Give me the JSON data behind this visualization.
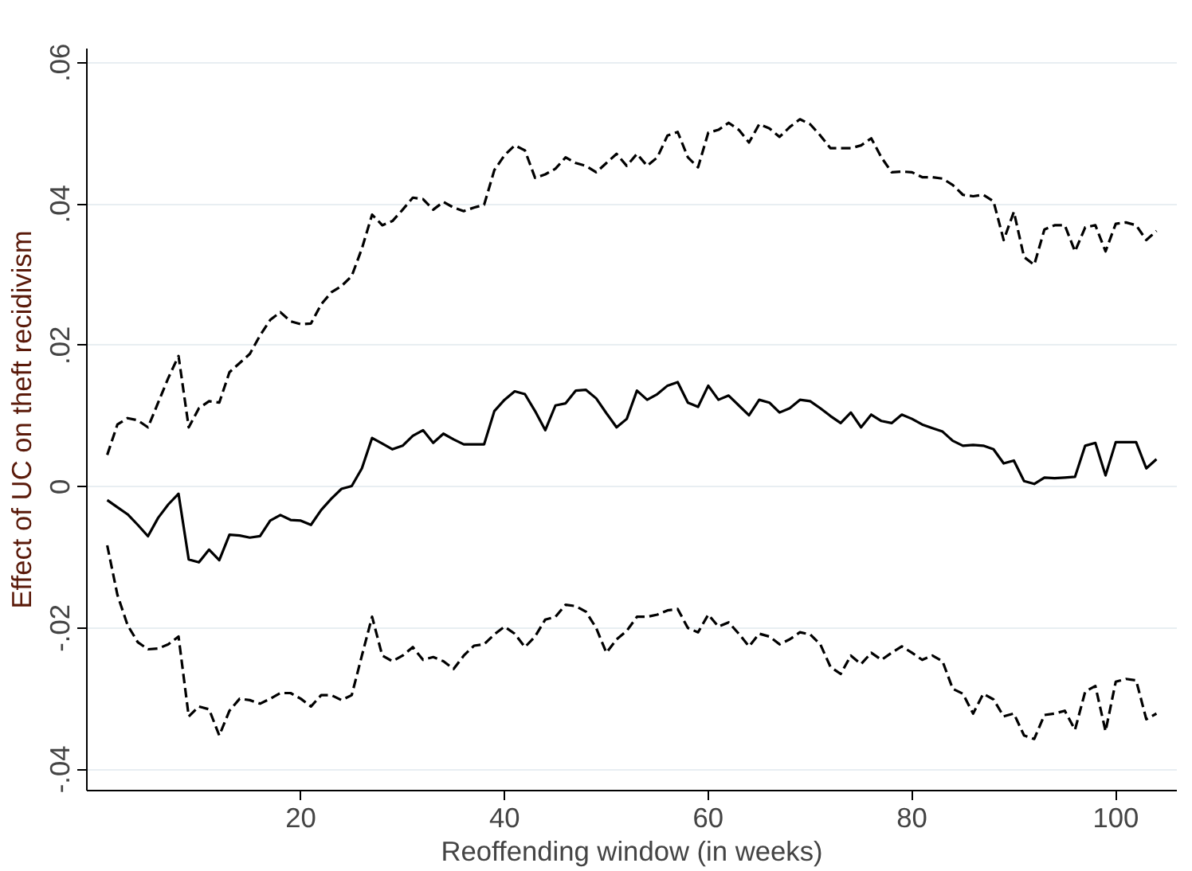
{
  "chart_data": {
    "type": "line",
    "xlabel": "Reoffending window (in weeks)",
    "ylabel": "Effect of UC on theft recidivism",
    "x": [
      1,
      2,
      3,
      4,
      5,
      6,
      7,
      8,
      9,
      10,
      11,
      12,
      13,
      14,
      15,
      16,
      17,
      18,
      19,
      20,
      21,
      22,
      23,
      24,
      25,
      26,
      27,
      28,
      29,
      30,
      31,
      32,
      33,
      34,
      35,
      36,
      37,
      38,
      39,
      40,
      41,
      42,
      43,
      44,
      45,
      46,
      47,
      48,
      49,
      50,
      51,
      52,
      53,
      54,
      55,
      56,
      57,
      58,
      59,
      60,
      61,
      62,
      63,
      64,
      65,
      66,
      67,
      68,
      69,
      70,
      71,
      72,
      73,
      74,
      75,
      76,
      77,
      78,
      79,
      80,
      81,
      82,
      83,
      84,
      85,
      86,
      87,
      88,
      89,
      90,
      91,
      92,
      93,
      94,
      95,
      96,
      97,
      98,
      99,
      100,
      101,
      102,
      103,
      104
    ],
    "xlim": [
      -1,
      106
    ],
    "xticks": [
      20,
      40,
      60,
      80,
      100
    ],
    "ylim": [
      -0.043,
      0.062
    ],
    "yticks": [
      {
        "value": -0.04,
        "label": "-.04"
      },
      {
        "value": -0.02,
        "label": "-.02"
      },
      {
        "value": 0,
        "label": "0"
      },
      {
        "value": 0.02,
        "label": ".02"
      },
      {
        "value": 0.04,
        "label": ".04"
      },
      {
        "value": 0.06,
        "label": ".06"
      }
    ],
    "grid": "y",
    "series": [
      {
        "color": "#000000",
        "line_style": "dashed",
        "values": [
          0.0045,
          0.0088,
          0.0097,
          0.0094,
          0.0084,
          0.0119,
          0.0154,
          0.0185,
          0.0084,
          0.0111,
          0.0121,
          0.0119,
          0.0162,
          0.0175,
          0.0188,
          0.0214,
          0.0236,
          0.0247,
          0.0234,
          0.023,
          0.0231,
          0.0258,
          0.0275,
          0.0284,
          0.0298,
          0.0337,
          0.0385,
          0.037,
          0.0376,
          0.0392,
          0.0409,
          0.0407,
          0.0392,
          0.0403,
          0.0395,
          0.039,
          0.0395,
          0.0399,
          0.0448,
          0.0469,
          0.0483,
          0.0476,
          0.0437,
          0.0442,
          0.045,
          0.0466,
          0.0458,
          0.0454,
          0.0445,
          0.0458,
          0.0471,
          0.0454,
          0.0471,
          0.0454,
          0.0466,
          0.0497,
          0.0502,
          0.0466,
          0.0452,
          0.0501,
          0.0505,
          0.0515,
          0.0505,
          0.0487,
          0.0513,
          0.0507,
          0.0495,
          0.0509,
          0.052,
          0.0513,
          0.0497,
          0.0479,
          0.0479,
          0.0479,
          0.0483,
          0.0493,
          0.0466,
          0.0445,
          0.0446,
          0.0445,
          0.0438,
          0.0438,
          0.0436,
          0.0427,
          0.0413,
          0.0411,
          0.0413,
          0.0404,
          0.0349,
          0.0389,
          0.0325,
          0.0314,
          0.0364,
          0.037,
          0.037,
          0.0333,
          0.0367,
          0.037,
          0.0333,
          0.0372,
          0.0374,
          0.037,
          0.0349,
          0.0362
        ]
      },
      {
        "color": "#000000",
        "line_style": "solid",
        "values": [
          -0.0019,
          -0.0029,
          -0.0039,
          -0.0054,
          -0.007,
          -0.0044,
          -0.0025,
          -0.001,
          -0.0103,
          -0.0107,
          -0.0089,
          -0.0104,
          -0.0068,
          -0.0069,
          -0.0072,
          -0.007,
          -0.0048,
          -0.004,
          -0.0047,
          -0.0048,
          -0.0054,
          -0.0033,
          -0.0017,
          -0.0003,
          0.0001,
          0.0026,
          0.0069,
          0.0061,
          0.0053,
          0.0058,
          0.0072,
          0.008,
          0.0062,
          0.0075,
          0.0067,
          0.006,
          0.006,
          0.006,
          0.0107,
          0.0123,
          0.0135,
          0.0131,
          0.0107,
          0.008,
          0.0115,
          0.0118,
          0.0136,
          0.0137,
          0.0125,
          0.0104,
          0.0084,
          0.0096,
          0.0136,
          0.0123,
          0.0131,
          0.0143,
          0.0148,
          0.0119,
          0.0113,
          0.0143,
          0.0123,
          0.0129,
          0.0115,
          0.0101,
          0.0123,
          0.0119,
          0.0105,
          0.0111,
          0.0123,
          0.0121,
          0.0111,
          0.01,
          0.009,
          0.0105,
          0.0084,
          0.0102,
          0.0093,
          0.009,
          0.0102,
          0.0096,
          0.0088,
          0.0083,
          0.0078,
          0.0065,
          0.0058,
          0.0059,
          0.0058,
          0.0053,
          0.0033,
          0.0037,
          0.0008,
          0.0004,
          0.0013,
          0.0012,
          0.0013,
          0.0014,
          0.0058,
          0.0062,
          0.0016,
          0.0063,
          0.0063,
          0.0063,
          0.0026,
          0.0039
        ]
      },
      {
        "color": "#000000",
        "line_style": "dashed",
        "values": [
          -0.0083,
          -0.0153,
          -0.0196,
          -0.022,
          -0.023,
          -0.0229,
          -0.0223,
          -0.0212,
          -0.0325,
          -0.0311,
          -0.0315,
          -0.0352,
          -0.0317,
          -0.03,
          -0.0302,
          -0.0307,
          -0.03,
          -0.0292,
          -0.0292,
          -0.03,
          -0.0311,
          -0.0295,
          -0.0295,
          -0.0302,
          -0.0295,
          -0.0239,
          -0.0184,
          -0.0239,
          -0.0247,
          -0.0239,
          -0.0227,
          -0.0245,
          -0.0241,
          -0.0247,
          -0.0258,
          -0.0239,
          -0.0225,
          -0.0223,
          -0.0209,
          -0.0198,
          -0.0208,
          -0.0227,
          -0.0212,
          -0.0188,
          -0.0184,
          -0.0167,
          -0.0169,
          -0.0177,
          -0.02,
          -0.0235,
          -0.0216,
          -0.0204,
          -0.0184,
          -0.0184,
          -0.0181,
          -0.0175,
          -0.0173,
          -0.02,
          -0.0206,
          -0.0181,
          -0.0198,
          -0.0192,
          -0.0208,
          -0.0226,
          -0.0208,
          -0.0212,
          -0.0223,
          -0.0216,
          -0.0206,
          -0.0209,
          -0.0223,
          -0.0255,
          -0.0265,
          -0.0239,
          -0.0251,
          -0.0235,
          -0.0245,
          -0.0235,
          -0.0226,
          -0.0235,
          -0.0245,
          -0.0239,
          -0.0247,
          -0.0286,
          -0.0293,
          -0.0321,
          -0.0293,
          -0.0301,
          -0.0325,
          -0.0321,
          -0.0352,
          -0.0357,
          -0.0323,
          -0.0321,
          -0.0317,
          -0.0344,
          -0.029,
          -0.0282,
          -0.0346,
          -0.0276,
          -0.0272,
          -0.0274,
          -0.0329,
          -0.0321
        ]
      }
    ]
  }
}
